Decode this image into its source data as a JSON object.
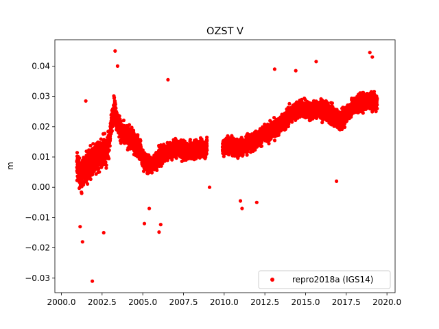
{
  "chart_data": {
    "type": "scatter",
    "title": "OZST V",
    "xlabel": "",
    "ylabel": "m",
    "xlim": [
      1999.6,
      2020.5
    ],
    "ylim": [
      -0.0348,
      0.0487
    ],
    "x_ticks": [
      2000.0,
      2002.5,
      2005.0,
      2007.5,
      2010.0,
      2012.5,
      2015.0,
      2017.5,
      2020.0
    ],
    "x_tick_labels": [
      "2000.0",
      "2002.5",
      "2005.0",
      "2007.5",
      "2010.0",
      "2012.5",
      "2015.0",
      "2017.5",
      "2020.0"
    ],
    "y_ticks": [
      -0.03,
      -0.02,
      -0.01,
      0.0,
      0.01,
      0.02,
      0.03,
      0.04
    ],
    "y_tick_labels": [
      "−0.03",
      "−0.02",
      "−0.01",
      "0.00",
      "0.01",
      "0.02",
      "0.03",
      "0.04"
    ],
    "grid": false,
    "legend_position": "lower-right",
    "series": [
      {
        "name": "repro2018a (IGS14)",
        "color": "#ff0000",
        "marker": "circle",
        "segments": [
          {
            "x": [
              2000.95,
              2001.2,
              2001.5,
              2001.8,
              2002.1,
              2002.4,
              2002.7,
              2002.95
            ],
            "y": [
              0.007,
              0.004,
              0.006,
              0.008,
              0.01,
              0.011,
              0.012,
              0.014
            ],
            "spread": 0.008
          },
          {
            "x": [
              2002.95,
              2003.1,
              2003.25,
              2003.45,
              2003.7,
              2004.0,
              2004.3,
              2004.6,
              2004.9
            ],
            "y": [
              0.016,
              0.022,
              0.027,
              0.021,
              0.018,
              0.017,
              0.016,
              0.014,
              0.012
            ],
            "spread": 0.006
          },
          {
            "x": [
              2004.9,
              2005.2,
              2005.5,
              2005.8,
              2006.2,
              2006.6,
              2007.0,
              2007.5,
              2008.0,
              2008.5,
              2008.95
            ],
            "y": [
              0.01,
              0.008,
              0.007,
              0.009,
              0.011,
              0.012,
              0.013,
              0.012,
              0.012,
              0.013,
              0.013
            ],
            "spread": 0.005
          },
          {
            "x": [
              2009.9,
              2010.3,
              2010.8,
              2011.3,
              2011.8,
              2012.3,
              2012.8,
              2013.3,
              2013.8
            ],
            "y": [
              0.013,
              0.014,
              0.013,
              0.014,
              0.015,
              0.017,
              0.018,
              0.02,
              0.022
            ],
            "spread": 0.005
          },
          {
            "x": [
              2013.8,
              2014.3,
              2014.8,
              2015.3,
              2015.8,
              2016.3,
              2016.8,
              2017.2,
              2017.6,
              2018.0,
              2018.5,
              2019.0,
              2019.4
            ],
            "y": [
              0.023,
              0.025,
              0.026,
              0.025,
              0.026,
              0.025,
              0.023,
              0.022,
              0.025,
              0.027,
              0.028,
              0.029,
              0.028
            ],
            "spread": 0.005
          }
        ],
        "outliers": [
          {
            "x": 2001.3,
            "y": -0.018
          },
          {
            "x": 2001.9,
            "y": -0.031
          },
          {
            "x": 2001.15,
            "y": -0.013
          },
          {
            "x": 2002.6,
            "y": -0.015
          },
          {
            "x": 2001.5,
            "y": 0.0285
          },
          {
            "x": 2003.3,
            "y": 0.045
          },
          {
            "x": 2003.45,
            "y": 0.04
          },
          {
            "x": 2006.55,
            "y": 0.0355
          },
          {
            "x": 2006.0,
            "y": -0.0148
          },
          {
            "x": 2006.1,
            "y": -0.0123
          },
          {
            "x": 2005.1,
            "y": -0.012
          },
          {
            "x": 2005.4,
            "y": -0.007
          },
          {
            "x": 2011.1,
            "y": -0.007
          },
          {
            "x": 2011.0,
            "y": -0.0045
          },
          {
            "x": 2012.0,
            "y": -0.005
          },
          {
            "x": 2016.9,
            "y": 0.002
          },
          {
            "x": 2015.65,
            "y": 0.0415
          },
          {
            "x": 2018.95,
            "y": 0.0445
          },
          {
            "x": 2019.1,
            "y": 0.043
          },
          {
            "x": 2009.1,
            "y": 0.0
          },
          {
            "x": 2013.1,
            "y": 0.039
          },
          {
            "x": 2014.4,
            "y": 0.0385
          }
        ]
      }
    ]
  }
}
